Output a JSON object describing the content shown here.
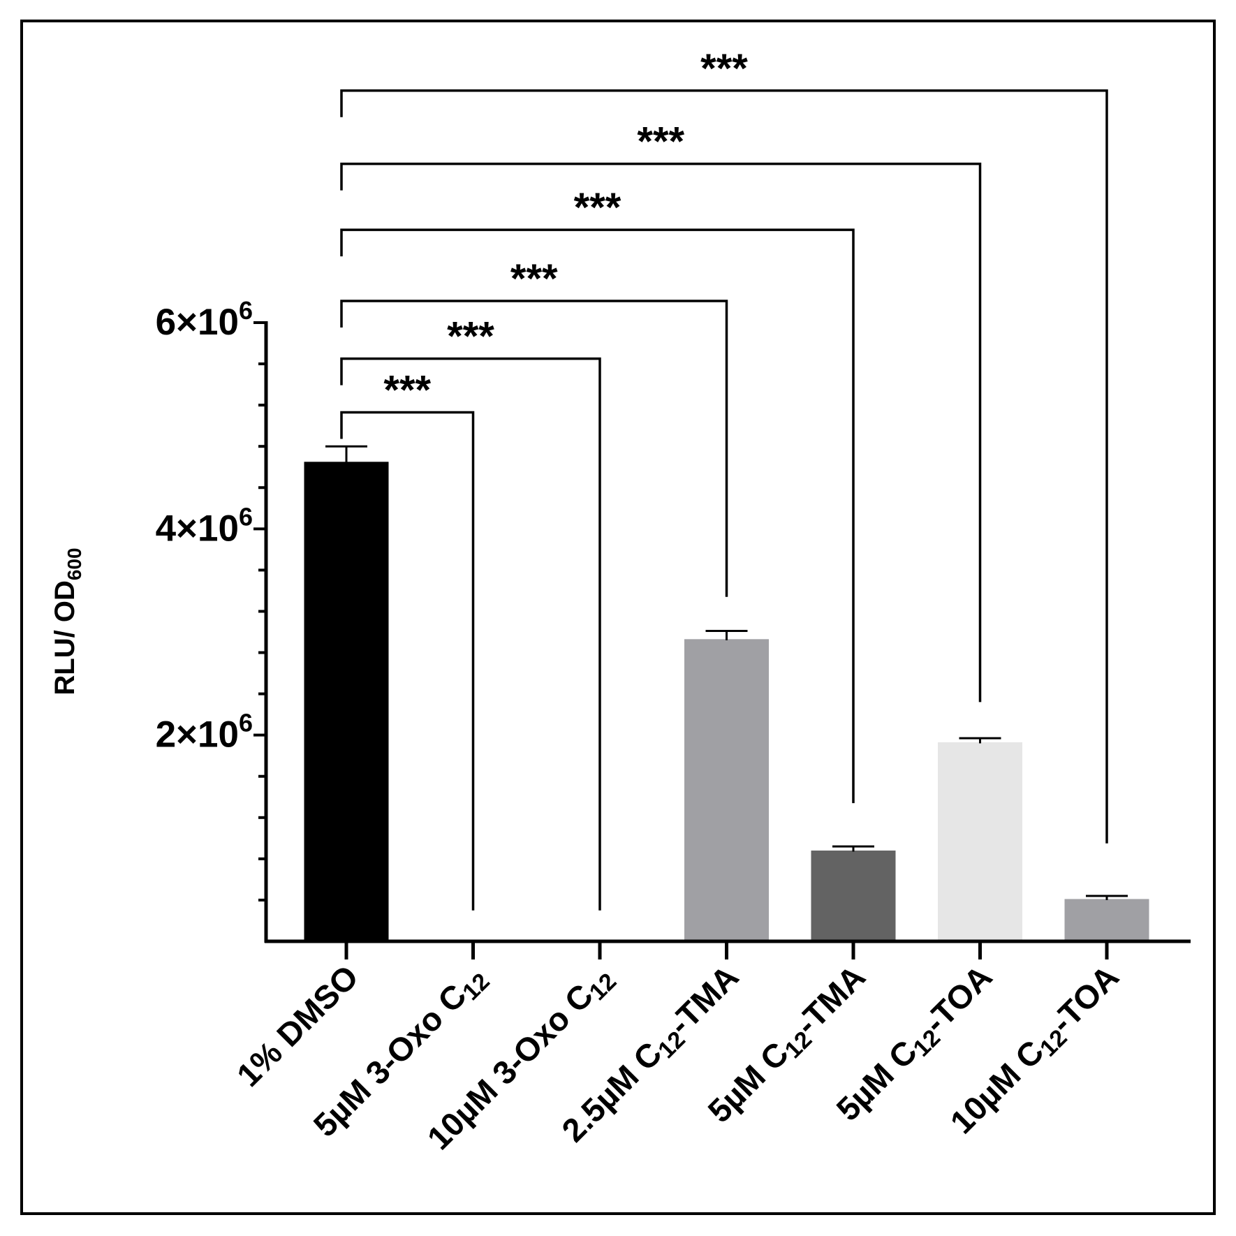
{
  "chart_data": {
    "type": "bar",
    "title": "",
    "xlabel": "",
    "ylabel": "RLU/ OD",
    "ylabel_subscript": "600",
    "ylim": [
      0,
      6000000
    ],
    "yticks": [
      {
        "value": 2000000,
        "base": "2×10",
        "exp": "6"
      },
      {
        "value": 4000000,
        "base": "4×10",
        "exp": "6"
      },
      {
        "value": 6000000,
        "base": "6×10",
        "exp": "6"
      }
    ],
    "minor_tick_step": 400000,
    "categories": [
      {
        "prefix": "1% DMSO",
        "sub": "",
        "suffix": ""
      },
      {
        "prefix": "5µM 3-Oxo C",
        "sub": "12",
        "suffix": ""
      },
      {
        "prefix": "10µM 3-Oxo C",
        "sub": "12",
        "suffix": ""
      },
      {
        "prefix": "2.5µM C",
        "sub": "12",
        "suffix": "-TMA"
      },
      {
        "prefix": "5µM C",
        "sub": "12",
        "suffix": "-TMA"
      },
      {
        "prefix": "5µM C",
        "sub": "12",
        "suffix": "-TOA"
      },
      {
        "prefix": "10µM C",
        "sub": "12",
        "suffix": "-TOA"
      }
    ],
    "values": [
      4640000,
      0,
      0,
      2920000,
      870000,
      1920000,
      400000
    ],
    "errors": [
      160000,
      0,
      0,
      90000,
      50000,
      50000,
      40000
    ],
    "colors": [
      "#000000",
      "#ffffff",
      "#ffffff",
      "#a0a0a4",
      "#636363",
      "#e6e6e6",
      "#a0a0a4"
    ],
    "comparisons": [
      {
        "from": 0,
        "to": 1,
        "label": "***",
        "line_value": 5130000,
        "drop_value": 300000
      },
      {
        "from": 0,
        "to": 2,
        "label": "***",
        "line_value": 5650000,
        "drop_value": 300000
      },
      {
        "from": 0,
        "to": 3,
        "label": "***",
        "line_value": 6210000,
        "drop_value": 3340000
      },
      {
        "from": 0,
        "to": 4,
        "label": "***",
        "line_value": 6900000,
        "drop_value": 1340000
      },
      {
        "from": 0,
        "to": 5,
        "label": "***",
        "line_value": 7540000,
        "drop_value": 2320000
      },
      {
        "from": 0,
        "to": 6,
        "label": "***",
        "line_value": 8250000,
        "drop_value": 950000
      }
    ]
  }
}
